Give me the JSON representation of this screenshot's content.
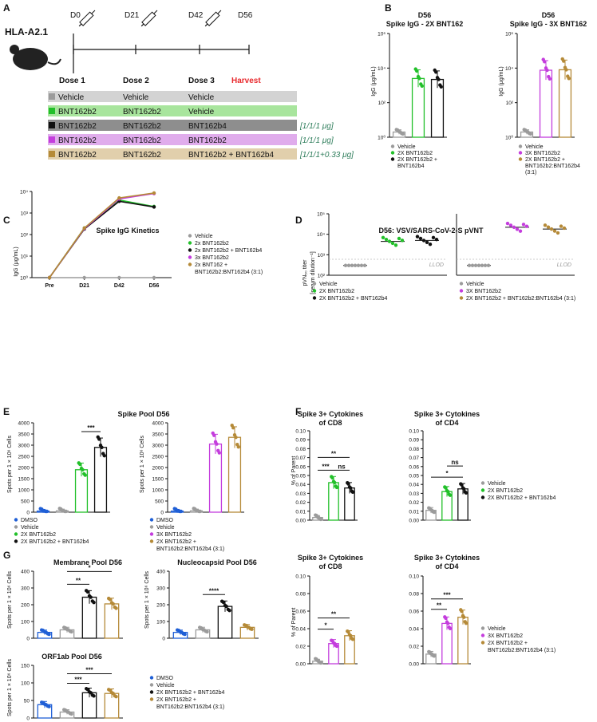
{
  "colors": {
    "vehicle": "#9b9b9b",
    "dmso": "#1f5fd6",
    "green": "#22c02a",
    "black": "#111111",
    "magenta": "#c43ddd",
    "brown": "#b58a38",
    "red": "#e8282c",
    "teal": "#2e7d5b"
  },
  "panelA": {
    "letter": "A",
    "mouse_label": "HLA-A2.1",
    "timepoints": [
      "D0",
      "D21",
      "D42",
      "D56"
    ],
    "doses": [
      "Dose 1",
      "Dose 2",
      "Dose 3",
      "Harvest"
    ],
    "rows": [
      {
        "c1": "Vehicle",
        "c2": "Vehicle",
        "c3": "Vehicle",
        "note": "",
        "color": "#9b9b9b",
        "bg": "#d3d3d3"
      },
      {
        "c1": "BNT162b2",
        "c2": "BNT162b2",
        "c3": "Vehicle",
        "note": "",
        "color": "#22c02a",
        "bg": "#a8e59d"
      },
      {
        "c1": "BNT162b2",
        "c2": "BNT162b2",
        "c3": "BNT162b4",
        "note": "[1/1/1 μg]",
        "color": "#111111",
        "bg": "#8e8e8e"
      },
      {
        "c1": "BNT162b2",
        "c2": "BNT162b2",
        "c3": "BNT162b2",
        "note": "[1/1/1 μg]",
        "color": "#c43ddd",
        "bg": "#e0acec"
      },
      {
        "c1": "BNT162b2",
        "c2": "BNT162b2",
        "c3": "BNT162b2 + BNT162b4",
        "note": "[1/1/1+0.33 μg]",
        "color": "#b58a38",
        "bg": "#e1cfac"
      }
    ]
  },
  "chart_data": [
    {
      "panel": "B",
      "type": "bar",
      "title": "D56",
      "subtitle": "Spike IgG - 2X BNT162",
      "ylabel": "IgG (μg/mL)",
      "yscale": "log",
      "ylim": [
        1,
        1000000
      ],
      "yticks": [
        "10⁰",
        "10²",
        "10⁴",
        "10⁶"
      ],
      "series": [
        {
          "name": "Vehicle",
          "value": 2,
          "color": "vehicle"
        },
        {
          "name": "2X BNT162b2",
          "value": 2500,
          "color": "green"
        },
        {
          "name": "2X BNT162b2 + BNT162b4",
          "value": 2200,
          "color": "black"
        }
      ],
      "legend": [
        "Vehicle",
        "2X BNT162b2",
        "2X BNT162b2 +",
        "BNT162b4"
      ]
    },
    {
      "panel": "B2",
      "type": "bar",
      "title": "D56",
      "subtitle": "Spike IgG - 3X BNT162",
      "ylabel": "IgG (μg/mL)",
      "yscale": "log",
      "ylim": [
        1,
        1000000
      ],
      "yticks": [
        "10⁰",
        "10²",
        "10⁴",
        "10⁶"
      ],
      "series": [
        {
          "name": "Vehicle",
          "value": 2,
          "color": "vehicle"
        },
        {
          "name": "3X BNT162b2",
          "value": 7500,
          "color": "magenta"
        },
        {
          "name": "2X BNT162b2 + BNT162b2:BNT162b4 (3:1)",
          "value": 8000,
          "color": "brown"
        }
      ],
      "legend": [
        "Vehicle",
        "3X BNT162b2",
        "2X BNT162b2 +",
        "BNT162b2:BNT162b4",
        "(3:1)"
      ]
    },
    {
      "panel": "C",
      "type": "line",
      "title": "Spike IgG Kinetics",
      "ylabel": "IgG (μg/mL)",
      "yscale": "log",
      "ylim": [
        1,
        10000
      ],
      "yticks": [
        "10⁰",
        "10¹",
        "10²",
        "10³",
        "10⁴"
      ],
      "categories": [
        "Pre",
        "D21",
        "D42",
        "D56"
      ],
      "series": [
        {
          "name": "Vehicle",
          "values": [
            1,
            1,
            1,
            1
          ],
          "color": "vehicle"
        },
        {
          "name": "2x BNT162b2",
          "values": [
            1,
            200,
            4000,
            2000
          ],
          "color": "green"
        },
        {
          "name": "2x BNT162b2 + BNT162b4",
          "values": [
            1,
            180,
            3500,
            1900
          ],
          "color": "black"
        },
        {
          "name": "3x BNT162b2",
          "values": [
            1,
            190,
            4500,
            8000
          ],
          "color": "magenta"
        },
        {
          "name": "2x BNT162 + BNT162b2:BNT162b4 (3:1)",
          "values": [
            1,
            200,
            5000,
            8500
          ],
          "color": "brown"
        }
      ],
      "legend": [
        "Vehicle",
        "2x BNT162b2",
        "2x BNT162b2 + BNT162b4",
        "3x BNT162b2",
        "2x BNT162 +",
        "BNT162b2:BNT162b4 (3:1)"
      ]
    },
    {
      "panel": "D",
      "type": "scatter",
      "title": "D56: VSV/SARS-CoV-2-S pVNT",
      "ylabel": "pVN₅₀ titer",
      "ylabel2": "[serum dilution⁻¹]",
      "yscale": "log",
      "ylim": [
        100,
        100000
      ],
      "yticks": [
        "10²",
        "10³",
        "10⁴",
        "10⁵"
      ],
      "lloд_label": "LLOD",
      "lloд": 600,
      "groups": [
        {
          "name": "Vehicle",
          "value": 300,
          "color": "vehicle"
        },
        {
          "name": "2X BNT162b2",
          "value": 4500,
          "color": "green"
        },
        {
          "name": "2X BNT162b2 + BNT162b4",
          "value": 5000,
          "color": "black"
        },
        {
          "name": "Vehicle",
          "value": 300,
          "color": "vehicle"
        },
        {
          "name": "3X BNT162b2",
          "value": 22000,
          "color": "magenta"
        },
        {
          "name": "2X BNT162b2 + BNT162b2:BNT162b4 (3:1)",
          "value": 18000,
          "color": "brown"
        }
      ],
      "legend_left": [
        "Vehicle",
        "2X BNT162b2",
        "2X BNT162b2 + BNT162b4"
      ],
      "legend_right": [
        "Vehicle",
        "3X BNT162b2",
        "2X BNT162b2 + BNT162b2:BNT162b4 (3:1)"
      ]
    },
    {
      "panel": "E",
      "type": "bar",
      "title": "Spike Pool D56",
      "ylabel": "Spots per 1 × 10⁶ Cells",
      "ylim": [
        0,
        4000
      ],
      "yticks": [
        "0",
        "500",
        "1000",
        "1500",
        "2000",
        "2500",
        "3000",
        "3500",
        "4000"
      ],
      "series": [
        {
          "name": "DMSO",
          "value": 50,
          "color": "dmso"
        },
        {
          "name": "Vehicle",
          "value": 60,
          "color": "vehicle"
        },
        {
          "name": "2X BNT162b2",
          "value": 1900,
          "color": "green"
        },
        {
          "name": "2X BNT162b2 + BNT162b4",
          "value": 2900,
          "color": "black"
        }
      ],
      "sig": "***",
      "legend": [
        "DMSO",
        "Vehicle",
        "2X BNT162b2",
        "2X BNT162b2 + BNT162b4"
      ]
    },
    {
      "panel": "E2",
      "type": "bar",
      "ylim": [
        0,
        4000
      ],
      "yticks": [
        "0",
        "500",
        "1000",
        "1500",
        "2000",
        "2500",
        "3000",
        "3500",
        "4000"
      ],
      "series": [
        {
          "name": "DMSO",
          "value": 50,
          "color": "dmso"
        },
        {
          "name": "Vehicle",
          "value": 60,
          "color": "vehicle"
        },
        {
          "name": "3X BNT162b2",
          "value": 3050,
          "color": "magenta"
        },
        {
          "name": "2X BNT162b2 + BNT162b2:BNT162b4 (3:1)",
          "value": 3350,
          "color": "brown"
        }
      ],
      "legend": [
        "DMSO",
        "Vehicle",
        "3X BNT162b2",
        "2X BNT162b2 +",
        "BNT162b2:BNT162b4 (3:1)"
      ]
    },
    {
      "panel": "F1",
      "type": "bar",
      "title": "Spike 3+ Cytokines",
      "subtitle": "of CD8",
      "ylabel": "% of Parent",
      "ylim": [
        0,
        0.1
      ],
      "yticks": [
        "0.00",
        "0.01",
        "0.02",
        "0.03",
        "0.04",
        "0.05",
        "0.06",
        "0.07",
        "0.08",
        "0.09",
        "0.10"
      ],
      "series": [
        {
          "name": "Vehicle",
          "value": 0.003,
          "color": "vehicle"
        },
        {
          "name": "2X BNT162b2",
          "value": 0.042,
          "color": "green"
        },
        {
          "name": "2X BNT162b2 + BNT162b4",
          "value": 0.036,
          "color": "black"
        }
      ],
      "sigs": [
        "**",
        "***",
        "ns"
      ]
    },
    {
      "panel": "F2",
      "type": "bar",
      "title": "Spike 3+ Cytokines",
      "subtitle": "of CD4",
      "ylim": [
        0,
        0.1
      ],
      "yticks": [
        "0.00",
        "0.01",
        "0.02",
        "0.03",
        "0.04",
        "0.05",
        "0.06",
        "0.07",
        "0.08",
        "0.09",
        "0.10"
      ],
      "series": [
        {
          "name": "Vehicle",
          "value": 0.011,
          "color": "vehicle"
        },
        {
          "name": "2X BNT162b2",
          "value": 0.032,
          "color": "green"
        },
        {
          "name": "2X BNT162b2 + BNT162b4",
          "value": 0.035,
          "color": "black"
        }
      ],
      "sigs": [
        "ns",
        "*"
      ],
      "legend": [
        "Vehicle",
        "2X BNT162b2",
        "2X BNT162b2 + BNT162b4"
      ]
    },
    {
      "panel": "F3",
      "type": "bar",
      "title": "Spike 3+ Cytokines",
      "subtitle": "of CD8",
      "ylabel": "% of Parent",
      "ylim": [
        0,
        0.1
      ],
      "yticks": [
        "0.00",
        "0.02",
        "0.04",
        "0.06",
        "0.08",
        "0.10"
      ],
      "series": [
        {
          "name": "Vehicle",
          "value": 0.003,
          "color": "vehicle"
        },
        {
          "name": "3X BNT162b2",
          "value": 0.023,
          "color": "magenta"
        },
        {
          "name": "2X BNT162b2 + BNT162b2:BNT162b4 (3:1)",
          "value": 0.032,
          "color": "brown"
        }
      ],
      "sigs": [
        "**",
        "*"
      ]
    },
    {
      "panel": "F4",
      "type": "bar",
      "title": "Spike 3+ Cytokines",
      "subtitle": "of CD4",
      "ylim": [
        0,
        0.1
      ],
      "yticks": [
        "0.00",
        "0.02",
        "0.04",
        "0.06",
        "0.08",
        "0.10"
      ],
      "series": [
        {
          "name": "Vehicle",
          "value": 0.011,
          "color": "vehicle"
        },
        {
          "name": "3X BNT162b2",
          "value": 0.046,
          "color": "magenta"
        },
        {
          "name": "2X BNT162b2 + BNT162b2:BNT162b4 (3:1)",
          "value": 0.053,
          "color": "brown"
        }
      ],
      "sigs": [
        "***",
        "**"
      ],
      "legend": [
        "Vehicle",
        "3X BNT162b2",
        "2X BNT162b2 +",
        "BNT162b2:BNT162b4 (3:1)"
      ]
    },
    {
      "panel": "G1",
      "type": "bar",
      "title": "Membrane Pool D56",
      "ylabel": "Spots per 1 × 10⁶ Cells",
      "ylim": [
        0,
        400
      ],
      "yticks": [
        "0",
        "100",
        "200",
        "300",
        "400"
      ],
      "series": [
        {
          "name": "DMSO",
          "value": 35,
          "color": "dmso"
        },
        {
          "name": "Vehicle",
          "value": 50,
          "color": "vehicle"
        },
        {
          "name": "2X BNT162b2 + BNT162b4",
          "value": 245,
          "color": "black"
        },
        {
          "name": "2X BNT162b2 + BNT162b2:BNT162b4 (3:1)",
          "value": 205,
          "color": "brown"
        }
      ],
      "sigs": [
        "*",
        "**"
      ]
    },
    {
      "panel": "G2",
      "type": "bar",
      "title": "Nucleocapsid Pool D56",
      "ylabel": "Spots per 1 × 10⁶ Cells",
      "ylim": [
        0,
        400
      ],
      "yticks": [
        "0",
        "100",
        "200",
        "300",
        "400"
      ],
      "series": [
        {
          "name": "DMSO",
          "value": 35,
          "color": "dmso"
        },
        {
          "name": "Vehicle",
          "value": 50,
          "color": "vehicle"
        },
        {
          "name": "2X BNT162b2 + BNT162b4",
          "value": 190,
          "color": "black"
        },
        {
          "name": "2X BNT162b2 + BNT162b2:BNT162b4 (3:1)",
          "value": 65,
          "color": "brown"
        }
      ],
      "sigs": [
        "****"
      ]
    },
    {
      "panel": "G3",
      "type": "bar",
      "title": "ORF1ab Pool D56",
      "ylabel": "Spots per 1 × 10⁶ Cells",
      "ylim": [
        0,
        150
      ],
      "yticks": [
        "0",
        "50",
        "100",
        "150"
      ],
      "series": [
        {
          "name": "DMSO",
          "value": 38,
          "color": "dmso"
        },
        {
          "name": "Vehicle",
          "value": 17,
          "color": "vehicle"
        },
        {
          "name": "2X BNT162b2 + BNT162b4",
          "value": 72,
          "color": "black"
        },
        {
          "name": "2X BNT162b2 + BNT162b2:BNT162b4 (3:1)",
          "value": 70,
          "color": "brown"
        }
      ],
      "sigs": [
        "***",
        "***"
      ],
      "legend": [
        "DMSO",
        "Vehicle",
        "2X BNT162b2 + BNT162b4",
        "2X BNT162b2 +",
        "BNT162b2:BNT162b4 (3:1)"
      ]
    }
  ],
  "letters": {
    "B": "B",
    "C": "C",
    "D": "D",
    "E": "E",
    "F": "F",
    "G": "G"
  }
}
